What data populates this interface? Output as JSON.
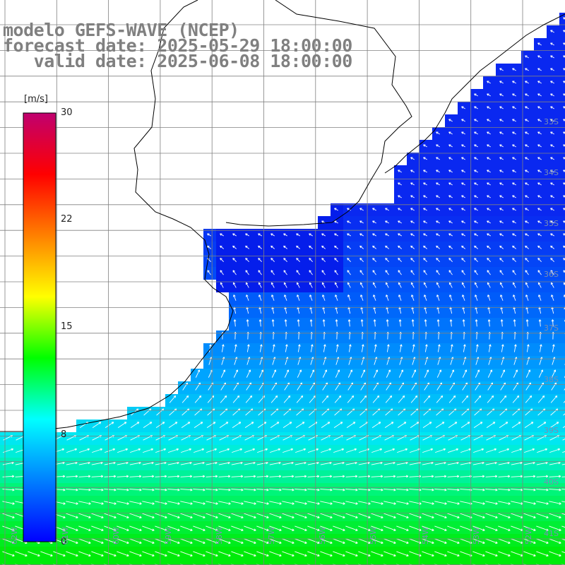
{
  "title": {
    "line1": "modelo GEFS-WAVE (NCEP)",
    "line2": "forecast date: 2025-05-29 18:00:00",
    "line3": "   valid date: 2025-06-08 18:00:00"
  },
  "colorbar": {
    "unit": "[m/s]",
    "ticks": [
      "30",
      "22",
      "15",
      "8",
      "0"
    ],
    "colors": [
      "#0000ff",
      "#0080ff",
      "#00ffff",
      "#00ff00",
      "#ffff00",
      "#ff8000",
      "#ff0000",
      "#c0006f"
    ]
  },
  "right_edge_labels": [
    "33S",
    "34S",
    "35S",
    "36S",
    "37S",
    "38S",
    "39S",
    "40S",
    "41S"
  ],
  "bottom_edge_labels": [
    "62W",
    "61W",
    "60W",
    "59W",
    "58W",
    "57W",
    "56W",
    "55W",
    "54W",
    "53W",
    "52W"
  ],
  "colors": {
    "grid": "#808080",
    "coast": "#000000",
    "land": "#ffffff",
    "title": "#808080"
  }
}
